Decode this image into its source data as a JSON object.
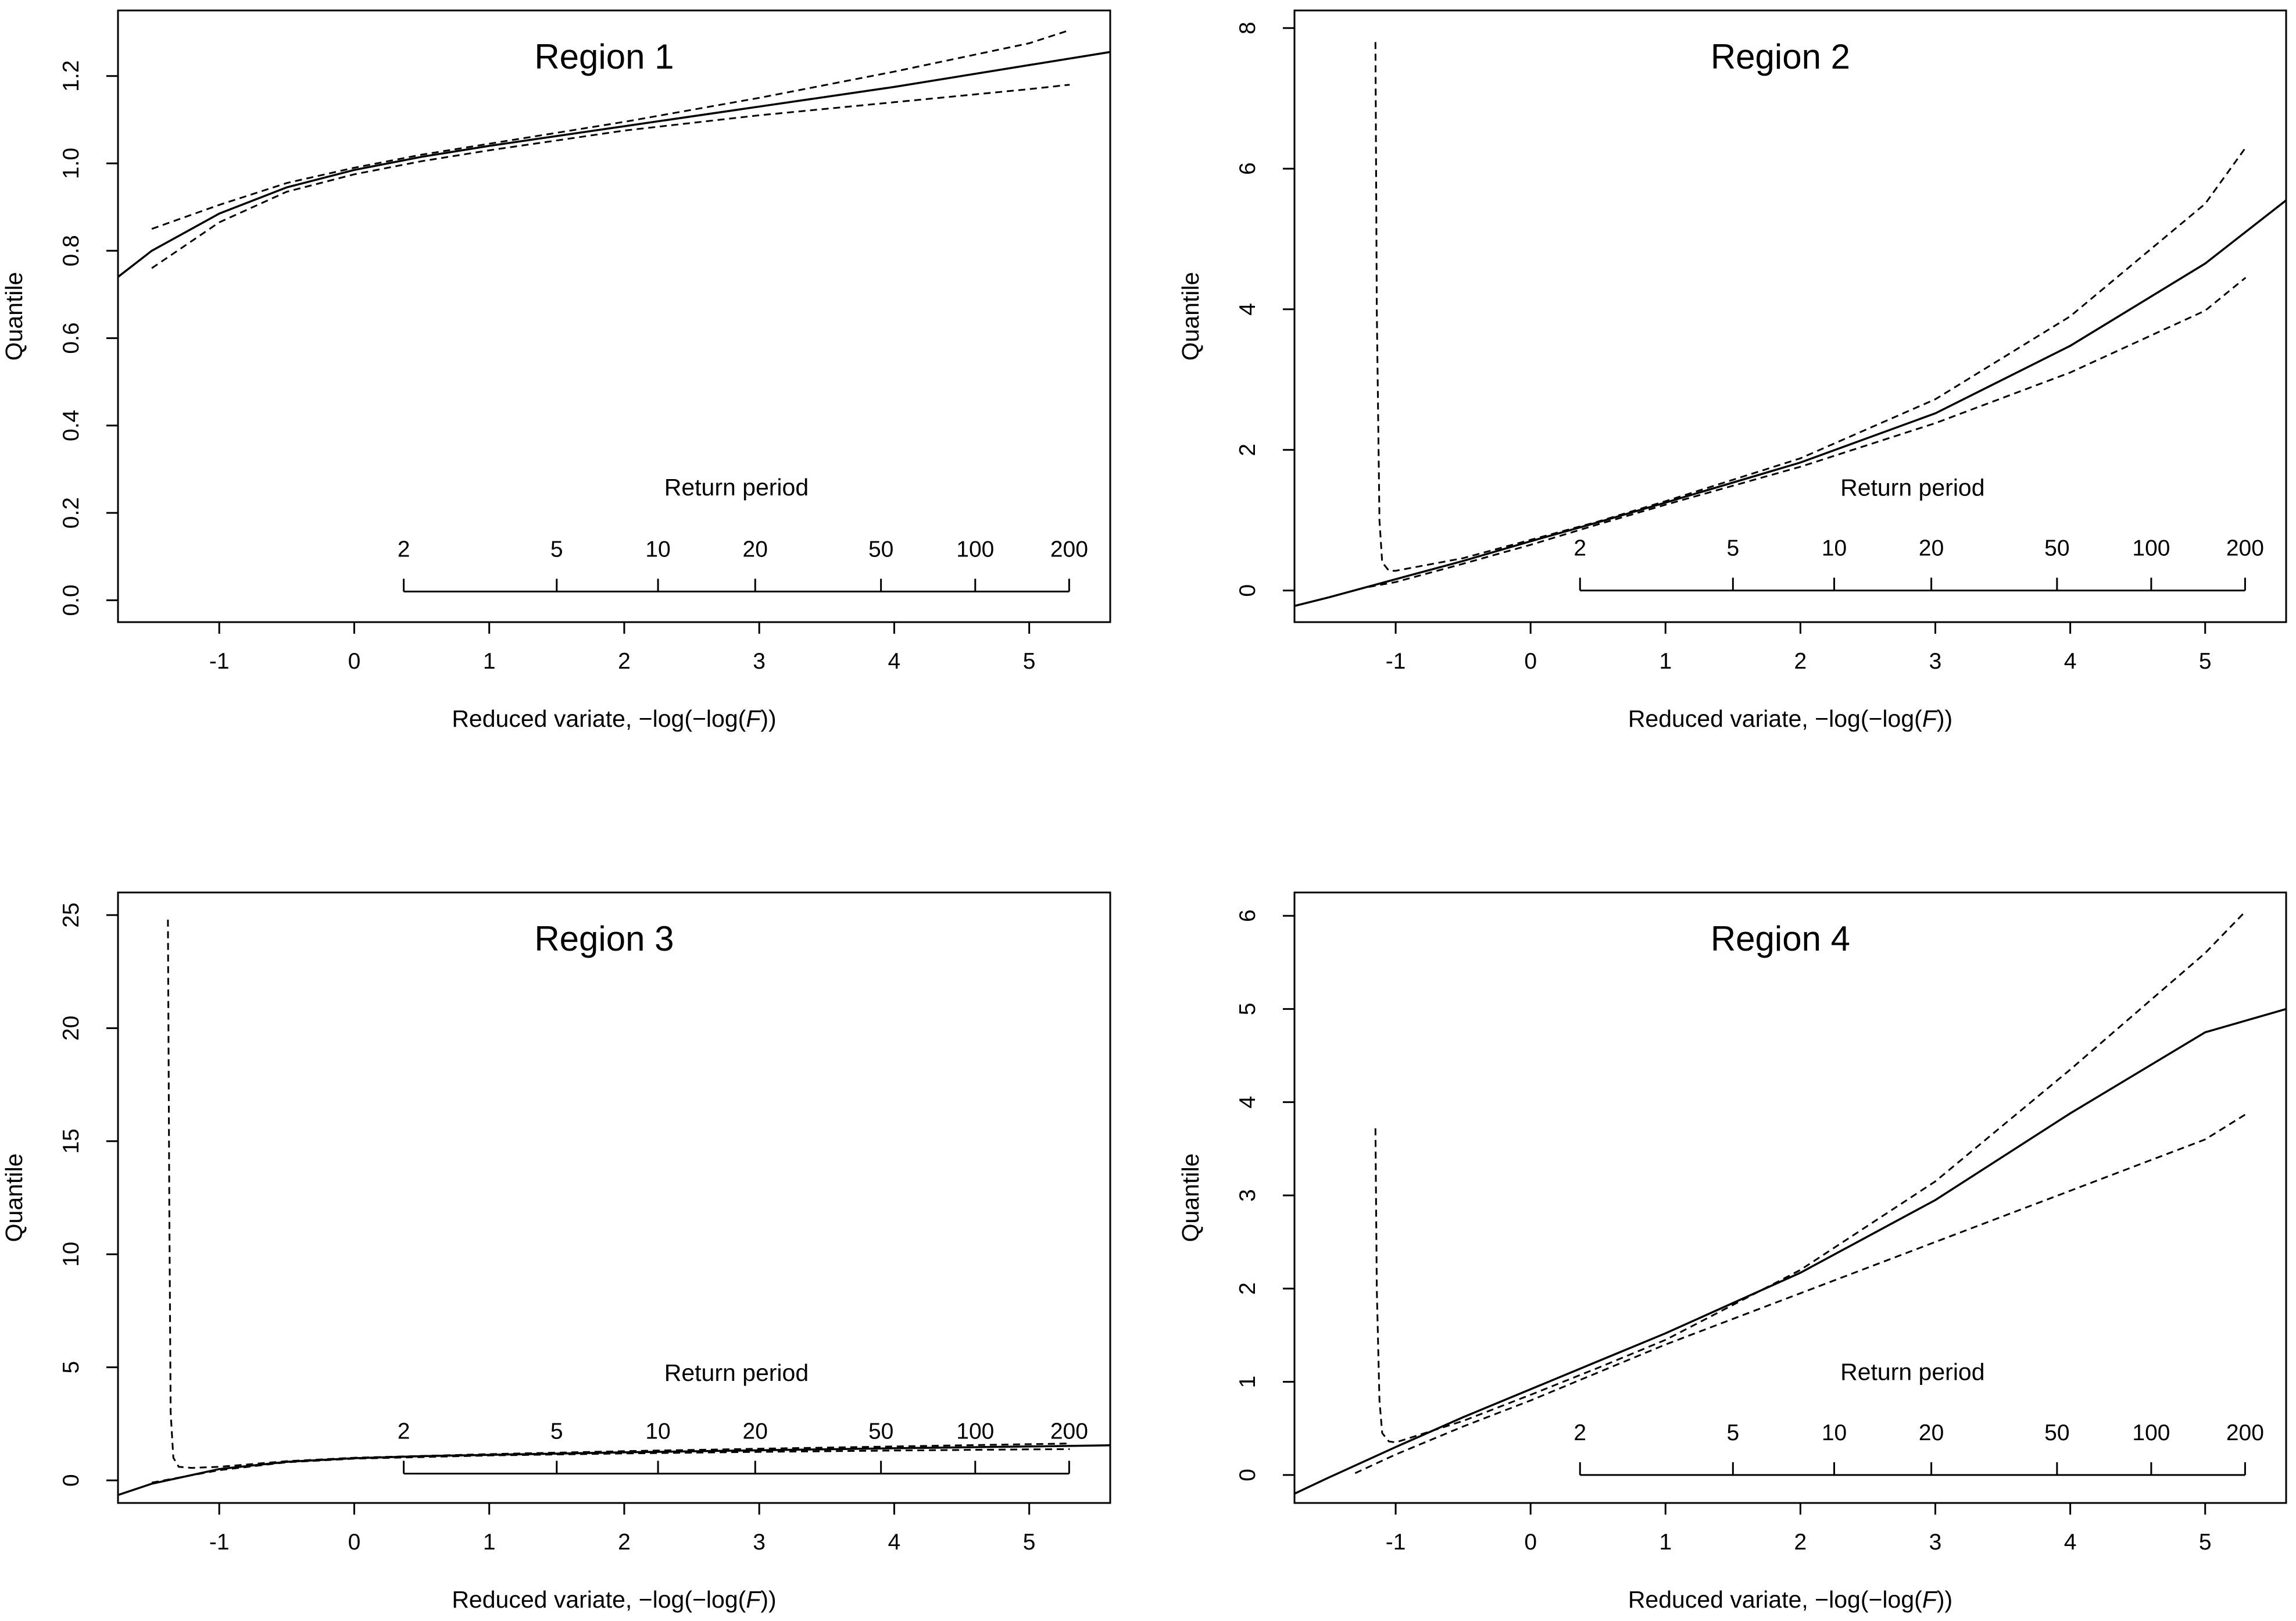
{
  "chart_data": [
    {
      "type": "line",
      "title": "Region 1",
      "xlabel_prefix": "Reduced variate,  −log(−log(",
      "xlabel_var": "F",
      "xlabel_suffix": "))",
      "ylabel": "Quantile",
      "xlim": [
        -1.75,
        5.6
      ],
      "ylim": [
        -0.05,
        1.35
      ],
      "xticks": [
        -1,
        0,
        1,
        2,
        3,
        4,
        5
      ],
      "yticks": [
        0.0,
        0.2,
        0.4,
        0.6,
        0.8,
        1.0,
        1.2
      ],
      "ytick_labels": [
        "0.0",
        "0.2",
        "0.4",
        "0.6",
        "0.8",
        "1.0",
        "1.2"
      ],
      "return_period": {
        "label": "Return period",
        "periods": [
          "2",
          "5",
          "10",
          "20",
          "50",
          "100",
          "200"
        ],
        "axis_y": 0.02,
        "label_y": 0.24
      },
      "series": [
        {
          "name": "quantile",
          "style": "solid",
          "x": [
            -1.75,
            -1.5,
            -1.0,
            -0.5,
            0.0,
            0.5,
            1.0,
            2.0,
            3.0,
            4.0,
            5.0,
            5.6
          ],
          "y": [
            0.74,
            0.8,
            0.885,
            0.945,
            0.985,
            1.015,
            1.04,
            1.085,
            1.13,
            1.175,
            1.225,
            1.255
          ]
        },
        {
          "name": "upper",
          "style": "dashed",
          "x": [
            -1.5,
            -1.0,
            -0.5,
            0.0,
            0.5,
            1.0,
            2.0,
            3.0,
            4.0,
            5.0,
            5.3
          ],
          "y": [
            0.85,
            0.905,
            0.955,
            0.99,
            1.02,
            1.045,
            1.095,
            1.15,
            1.21,
            1.275,
            1.305
          ]
        },
        {
          "name": "lower",
          "style": "dashed",
          "x": [
            -1.5,
            -1.0,
            -0.5,
            0.0,
            0.5,
            1.0,
            2.0,
            3.0,
            4.0,
            5.0,
            5.3
          ],
          "y": [
            0.76,
            0.865,
            0.935,
            0.975,
            1.005,
            1.03,
            1.075,
            1.11,
            1.14,
            1.17,
            1.18
          ]
        }
      ]
    },
    {
      "type": "line",
      "title": "Region 2",
      "xlabel_prefix": "Reduced variate,  −log(−log(",
      "xlabel_var": "F",
      "xlabel_suffix": "))",
      "ylabel": "Quantile",
      "xlim": [
        -1.75,
        5.6
      ],
      "ylim": [
        -0.45,
        8.25
      ],
      "xticks": [
        -1,
        0,
        1,
        2,
        3,
        4,
        5
      ],
      "yticks": [
        0,
        2,
        4,
        6,
        8
      ],
      "ytick_labels": [
        "0",
        "2",
        "4",
        "6",
        "8"
      ],
      "return_period": {
        "label": "Return period",
        "periods": [
          "2",
          "5",
          "10",
          "20",
          "50",
          "100",
          "200"
        ],
        "axis_y": 0.0,
        "label_y": 1.35
      },
      "series": [
        {
          "name": "quantile",
          "style": "solid",
          "x": [
            -1.75,
            -1.5,
            -1.0,
            -0.5,
            0.0,
            0.5,
            1.0,
            2.0,
            3.0,
            4.0,
            5.0,
            5.6
          ],
          "y": [
            -0.22,
            -0.1,
            0.16,
            0.42,
            0.7,
            0.97,
            1.25,
            1.82,
            2.52,
            3.48,
            4.65,
            5.55
          ]
        },
        {
          "name": "upper",
          "style": "dashed",
          "x": [
            -1.15,
            -1.14,
            -1.12,
            -1.1,
            -1.05,
            -1.0,
            -0.5,
            0.0,
            0.5,
            1.0,
            2.0,
            3.0,
            4.0,
            5.0,
            5.3
          ],
          "y": [
            7.8,
            4.0,
            1.0,
            0.4,
            0.28,
            0.28,
            0.46,
            0.72,
            0.98,
            1.27,
            1.88,
            2.72,
            3.9,
            5.5,
            6.3
          ]
        },
        {
          "name": "lower",
          "style": "dashed",
          "x": [
            -1.2,
            -1.0,
            -0.5,
            0.0,
            0.5,
            1.0,
            2.0,
            3.0,
            4.0,
            5.0,
            5.3
          ],
          "y": [
            0.05,
            0.12,
            0.38,
            0.65,
            0.94,
            1.22,
            1.76,
            2.38,
            3.1,
            3.98,
            4.45
          ]
        }
      ]
    },
    {
      "type": "line",
      "title": "Region 3",
      "xlabel_prefix": "Reduced variate,  −log(−log(",
      "xlabel_var": "F",
      "xlabel_suffix": "))",
      "ylabel": "Quantile",
      "xlim": [
        -1.75,
        5.6
      ],
      "ylim": [
        -1.0,
        26.0
      ],
      "xticks": [
        -1,
        0,
        1,
        2,
        3,
        4,
        5
      ],
      "yticks": [
        0,
        5,
        10,
        15,
        20,
        25
      ],
      "ytick_labels": [
        "0",
        "5",
        "10",
        "15",
        "20",
        "25"
      ],
      "return_period": {
        "label": "Return period",
        "periods": [
          "2",
          "5",
          "10",
          "20",
          "50",
          "100",
          "200"
        ],
        "axis_y": 0.3,
        "label_y": 4.4
      },
      "series": [
        {
          "name": "quantile",
          "style": "solid",
          "x": [
            -1.75,
            -1.5,
            -1.0,
            -0.5,
            0.0,
            0.5,
            1.0,
            2.0,
            3.0,
            4.0,
            5.0,
            5.6
          ],
          "y": [
            -0.65,
            -0.15,
            0.5,
            0.82,
            0.98,
            1.07,
            1.13,
            1.24,
            1.33,
            1.42,
            1.5,
            1.55
          ]
        },
        {
          "name": "upper",
          "style": "dashed",
          "x": [
            -1.38,
            -1.37,
            -1.36,
            -1.34,
            -1.3,
            -1.2,
            -1.0,
            -0.5,
            0.0,
            1.0,
            2.0,
            3.0,
            4.0,
            5.0,
            5.3
          ],
          "y": [
            24.8,
            12.0,
            3.0,
            1.0,
            0.6,
            0.55,
            0.6,
            0.85,
            1.0,
            1.16,
            1.29,
            1.4,
            1.5,
            1.6,
            1.63
          ]
        },
        {
          "name": "lower",
          "style": "dashed",
          "x": [
            -1.5,
            -1.0,
            -0.5,
            0.0,
            1.0,
            2.0,
            3.0,
            4.0,
            5.0,
            5.3
          ],
          "y": [
            -0.1,
            0.45,
            0.8,
            0.96,
            1.1,
            1.19,
            1.26,
            1.32,
            1.37,
            1.38
          ]
        }
      ]
    },
    {
      "type": "line",
      "title": "Region 4",
      "xlabel_prefix": "Reduced variate,  −log(−log(",
      "xlabel_var": "F",
      "xlabel_suffix": "))",
      "ylabel": "Quantile",
      "xlim": [
        -1.75,
        5.6
      ],
      "ylim": [
        -0.3,
        6.25
      ],
      "xticks": [
        -1,
        0,
        1,
        2,
        3,
        4,
        5
      ],
      "yticks": [
        0,
        1,
        2,
        3,
        4,
        5,
        6
      ],
      "ytick_labels": [
        "0",
        "1",
        "2",
        "3",
        "4",
        "5",
        "6"
      ],
      "return_period": {
        "label": "Return period",
        "periods": [
          "2",
          "5",
          "10",
          "20",
          "50",
          "100",
          "200"
        ],
        "axis_y": 0.0,
        "label_y": 1.02
      },
      "series": [
        {
          "name": "quantile",
          "style": "solid",
          "x": [
            -1.75,
            -1.5,
            -1.0,
            -0.5,
            0.0,
            0.5,
            1.0,
            2.0,
            3.0,
            4.0,
            5.0,
            5.6
          ],
          "y": [
            -0.2,
            -0.03,
            0.3,
            0.62,
            0.92,
            1.22,
            1.52,
            2.17,
            2.95,
            3.88,
            4.75,
            5.0
          ]
        },
        {
          "name": "upper",
          "style": "dashed",
          "x": [
            -1.15,
            -1.14,
            -1.12,
            -1.1,
            -1.05,
            -1.0,
            -0.5,
            0.0,
            0.5,
            1.0,
            2.0,
            3.0,
            4.0,
            5.0,
            5.3
          ],
          "y": [
            3.72,
            2.0,
            0.8,
            0.45,
            0.36,
            0.35,
            0.58,
            0.86,
            1.15,
            1.45,
            2.2,
            3.15,
            4.35,
            5.6,
            6.05
          ]
        },
        {
          "name": "lower",
          "style": "dashed",
          "x": [
            -1.3,
            -1.0,
            -0.5,
            0.0,
            0.5,
            1.0,
            2.0,
            3.0,
            4.0,
            5.0,
            5.3
          ],
          "y": [
            0.02,
            0.22,
            0.52,
            0.8,
            1.1,
            1.4,
            1.95,
            2.5,
            3.05,
            3.6,
            3.87
          ]
        }
      ]
    }
  ]
}
